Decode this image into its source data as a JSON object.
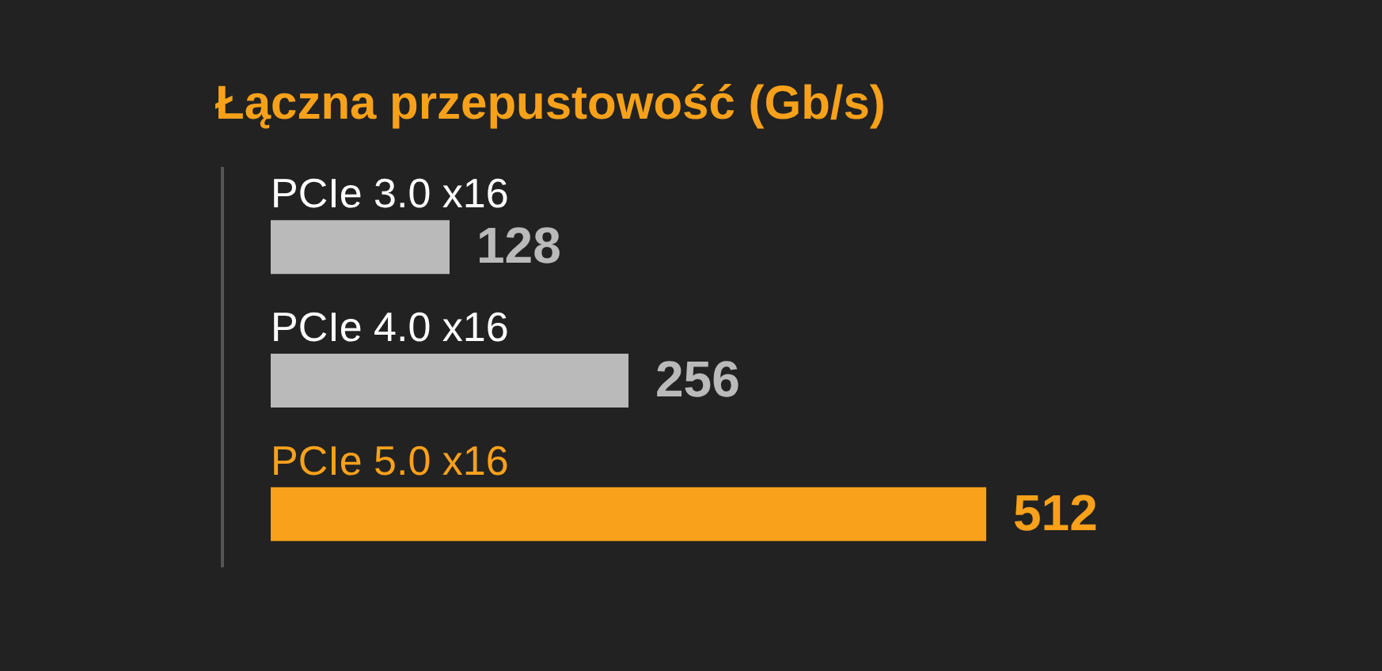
{
  "chart_data": {
    "type": "bar",
    "orientation": "horizontal",
    "title": "Łączna przepustowość (Gb/s)",
    "categories": [
      "PCIe 3.0 x16",
      "PCIe 4.0 x16",
      "PCIe 5.0 x16"
    ],
    "values": [
      128,
      256,
      512
    ],
    "colors": [
      "#bababa",
      "#bababa",
      "#f9a11b"
    ],
    "data_labels": true
  }
}
